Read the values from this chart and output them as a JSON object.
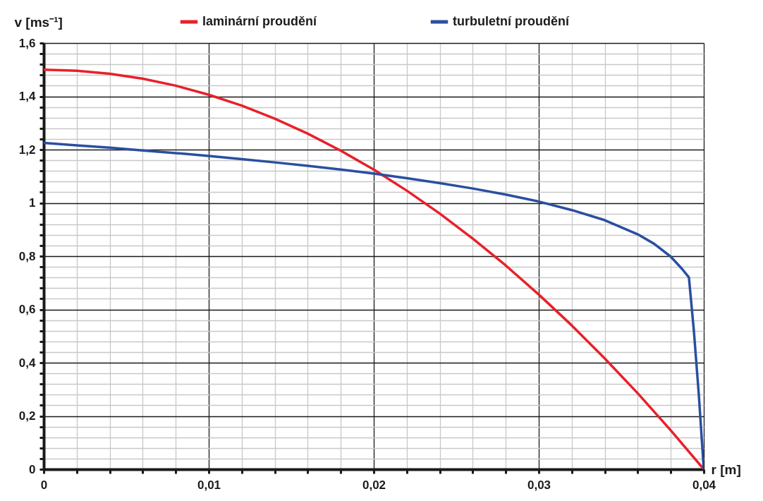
{
  "chart_data": {
    "type": "line",
    "xlabel": "r [m]",
    "ylabel": "v [ms⁻¹]",
    "xlim": [
      0,
      0.04
    ],
    "ylim": [
      0,
      1.6
    ],
    "xticks": [
      0,
      {
        "value": 0.002,
        "label": null
      },
      {
        "value": 0.004,
        "label": null
      },
      {
        "value": 0.006,
        "label": null
      },
      {
        "value": 0.008,
        "label": null
      },
      {
        "value": 0.01,
        "label": "0,01"
      },
      {
        "value": 0.012,
        "label": null
      },
      {
        "value": 0.014,
        "label": null
      },
      {
        "value": 0.016,
        "label": null
      },
      {
        "value": 0.018,
        "label": null
      },
      {
        "value": 0.02,
        "label": "0,02"
      },
      {
        "value": 0.022,
        "label": null
      },
      {
        "value": 0.024,
        "label": null
      },
      {
        "value": 0.026,
        "label": null
      },
      {
        "value": 0.028,
        "label": null
      },
      {
        "value": 0.03,
        "label": "0,03"
      },
      {
        "value": 0.032,
        "label": null
      },
      {
        "value": 0.034,
        "label": null
      },
      {
        "value": 0.036,
        "label": null
      },
      {
        "value": 0.038,
        "label": null
      },
      {
        "value": 0.04,
        "label": "0,04"
      }
    ],
    "yticks": [
      0,
      {
        "value": 0.04,
        "label": null
      },
      {
        "value": 0.08,
        "label": null
      },
      {
        "value": 0.12,
        "label": null
      },
      {
        "value": 0.16,
        "label": null
      },
      {
        "value": 0.2,
        "label": "0,2"
      },
      {
        "value": 0.24,
        "label": null
      },
      {
        "value": 0.28,
        "label": null
      },
      {
        "value": 0.32,
        "label": null
      },
      {
        "value": 0.36,
        "label": null
      },
      {
        "value": 0.4,
        "label": "0,4"
      },
      {
        "value": 0.44,
        "label": null
      },
      {
        "value": 0.48,
        "label": null
      },
      {
        "value": 0.52,
        "label": null
      },
      {
        "value": 0.56,
        "label": null
      },
      {
        "value": 0.6,
        "label": "0,6"
      },
      {
        "value": 0.64,
        "label": null
      },
      {
        "value": 0.68,
        "label": null
      },
      {
        "value": 0.72,
        "label": null
      },
      {
        "value": 0.76,
        "label": null
      },
      {
        "value": 0.8,
        "label": "0,8"
      },
      {
        "value": 0.84,
        "label": null
      },
      {
        "value": 0.88,
        "label": null
      },
      {
        "value": 0.92,
        "label": null
      },
      {
        "value": 0.96,
        "label": null
      },
      1,
      {
        "value": 1.04,
        "label": null
      },
      {
        "value": 1.08,
        "label": null
      },
      {
        "value": 1.12,
        "label": null
      },
      {
        "value": 1.16,
        "label": null
      },
      {
        "value": 1.2,
        "label": "1,2"
      },
      {
        "value": 1.24,
        "label": null
      },
      {
        "value": 1.28,
        "label": null
      },
      {
        "value": 1.32,
        "label": null
      },
      {
        "value": 1.36,
        "label": null
      },
      {
        "value": 1.4,
        "label": "1,4"
      },
      {
        "value": 1.44,
        "label": null
      },
      {
        "value": 1.48,
        "label": null
      },
      {
        "value": 1.52,
        "label": null
      },
      {
        "value": 1.56,
        "label": null
      },
      {
        "value": 1.6,
        "label": "1,6"
      }
    ],
    "grid": true,
    "legend": "top",
    "line_style": "solid",
    "series": [
      {
        "name": "laminární proudění",
        "color": "#e8202a",
        "x": [
          0,
          0.002,
          0.004,
          0.006,
          0.008,
          0.01,
          0.012,
          0.014,
          0.016,
          0.018,
          0.02,
          0.022,
          0.024,
          0.026,
          0.028,
          0.03,
          0.032,
          0.034,
          0.036,
          0.038,
          0.04
        ],
        "values": [
          1.5,
          1.496,
          1.485,
          1.466,
          1.44,
          1.406,
          1.365,
          1.316,
          1.26,
          1.196,
          1.125,
          1.046,
          0.96,
          0.866,
          0.765,
          0.656,
          0.54,
          0.416,
          0.285,
          0.146,
          0
        ]
      },
      {
        "name": "turbuletní proudění",
        "color": "#2a4fa0",
        "x": [
          0,
          0.002,
          0.004,
          0.006,
          0.008,
          0.01,
          0.012,
          0.014,
          0.016,
          0.018,
          0.02,
          0.022,
          0.024,
          0.026,
          0.028,
          0.03,
          0.032,
          0.034,
          0.036,
          0.037,
          0.038,
          0.0387,
          0.0391,
          0.0394,
          0.0397,
          0.04
        ],
        "values": [
          1.225,
          1.216,
          1.207,
          1.197,
          1.187,
          1.176,
          1.164,
          1.152,
          1.139,
          1.125,
          1.11,
          1.093,
          1.074,
          1.054,
          1.031,
          1.005,
          0.973,
          0.935,
          0.882,
          0.846,
          0.798,
          0.751,
          0.72,
          0.52,
          0.28,
          0
        ]
      }
    ]
  }
}
